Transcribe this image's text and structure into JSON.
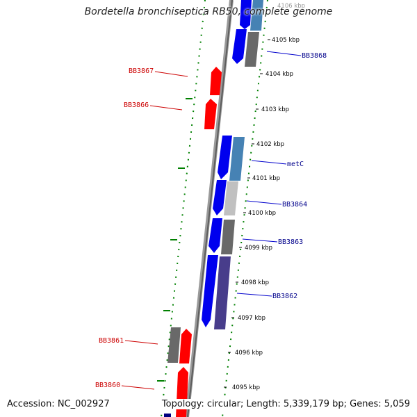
{
  "title": "Bordetella bronchiseptica RB50, complete genome",
  "footer": {
    "accession": "Accession: NC_002927",
    "topology": "Topology: circular; Length: 5,339,179 bp; Genes: 5,059"
  },
  "colors": {
    "forward_cds": "#0000ff",
    "reverse_cds": "#ff0000",
    "forward_label": "#00008b",
    "reverse_label": "#cc0000",
    "backbone": "#808080",
    "gc_skew": "#008000"
  },
  "scale_labels": [
    "4106 kbp",
    "4105 kbp",
    "4104 kbp",
    "4103 kbp",
    "4102 kbp",
    "4101 kbp",
    "4100 kbp",
    "4099 kbp",
    "4098 kbp",
    "4097 kbp",
    "4096 kbp",
    "4095 kbp"
  ],
  "gene_labels_forward": [
    "BB3868",
    "metC",
    "BB3864",
    "BB3863",
    "BB3862"
  ],
  "gene_labels_reverse": [
    "BB3867",
    "BB3866",
    "BB3861",
    "BB3860"
  ]
}
